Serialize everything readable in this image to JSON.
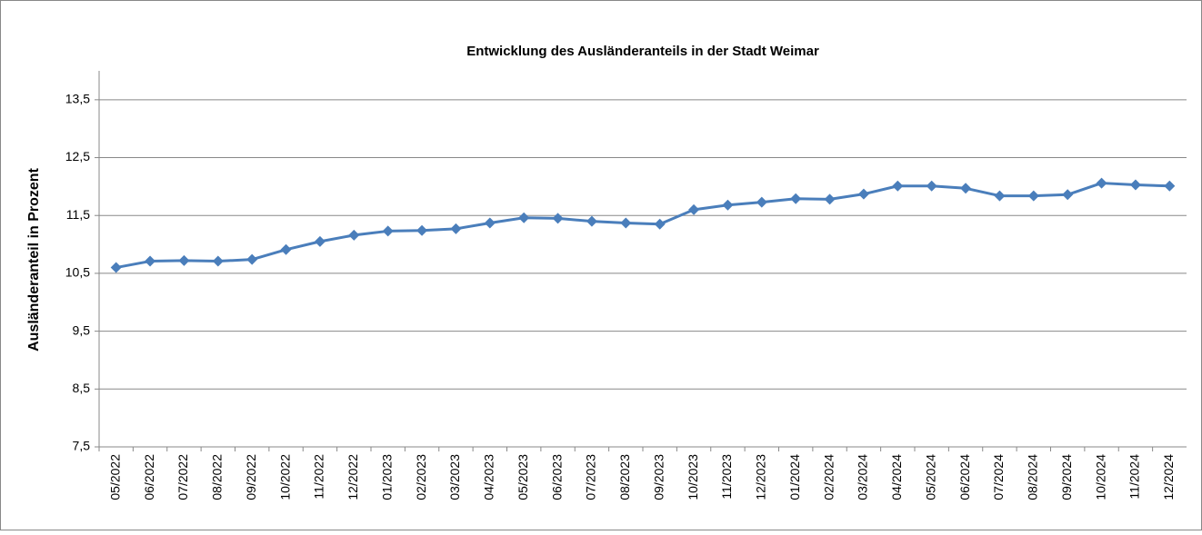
{
  "chart_data": {
    "type": "line",
    "title": "Entwicklung des Ausländeranteils in der Stadt Weimar",
    "y_label": "Ausländeranteil in Prozent",
    "categories": [
      "05/2022",
      "06/2022",
      "07/2022",
      "08/2022",
      "09/2022",
      "10/2022",
      "11/2022",
      "12/2022",
      "01/2023",
      "02/2023",
      "03/2023",
      "04/2023",
      "05/2023",
      "06/2023",
      "07/2023",
      "08/2023",
      "09/2023",
      "10/2023",
      "11/2023",
      "12/2023",
      "01/2024",
      "02/2024",
      "03/2024",
      "04/2024",
      "05/2024",
      "06/2024",
      "07/2024",
      "08/2024",
      "09/2024",
      "10/2024",
      "11/2024",
      "12/2024"
    ],
    "values": [
      10.6,
      10.71,
      10.72,
      10.71,
      10.74,
      10.91,
      11.05,
      11.16,
      11.23,
      11.24,
      11.27,
      11.37,
      11.46,
      11.45,
      11.4,
      11.37,
      11.35,
      11.6,
      11.68,
      11.73,
      11.79,
      11.78,
      11.87,
      12.01,
      12.01,
      11.97,
      11.84,
      11.84,
      11.86,
      12.06,
      12.03,
      12.01
    ],
    "color": "#4a7ebb",
    "ylim": [
      7.5,
      14.0
    ],
    "yticks": [
      {
        "value": 7.5,
        "label": "7,5"
      },
      {
        "value": 8.5,
        "label": "8,5"
      },
      {
        "value": 9.5,
        "label": "9,5"
      },
      {
        "value": 10.5,
        "label": "10,5"
      },
      {
        "value": 11.5,
        "label": "11,5"
      },
      {
        "value": 12.5,
        "label": "12,5"
      },
      {
        "value": 13.5,
        "label": "13,5"
      }
    ],
    "grid": true
  }
}
